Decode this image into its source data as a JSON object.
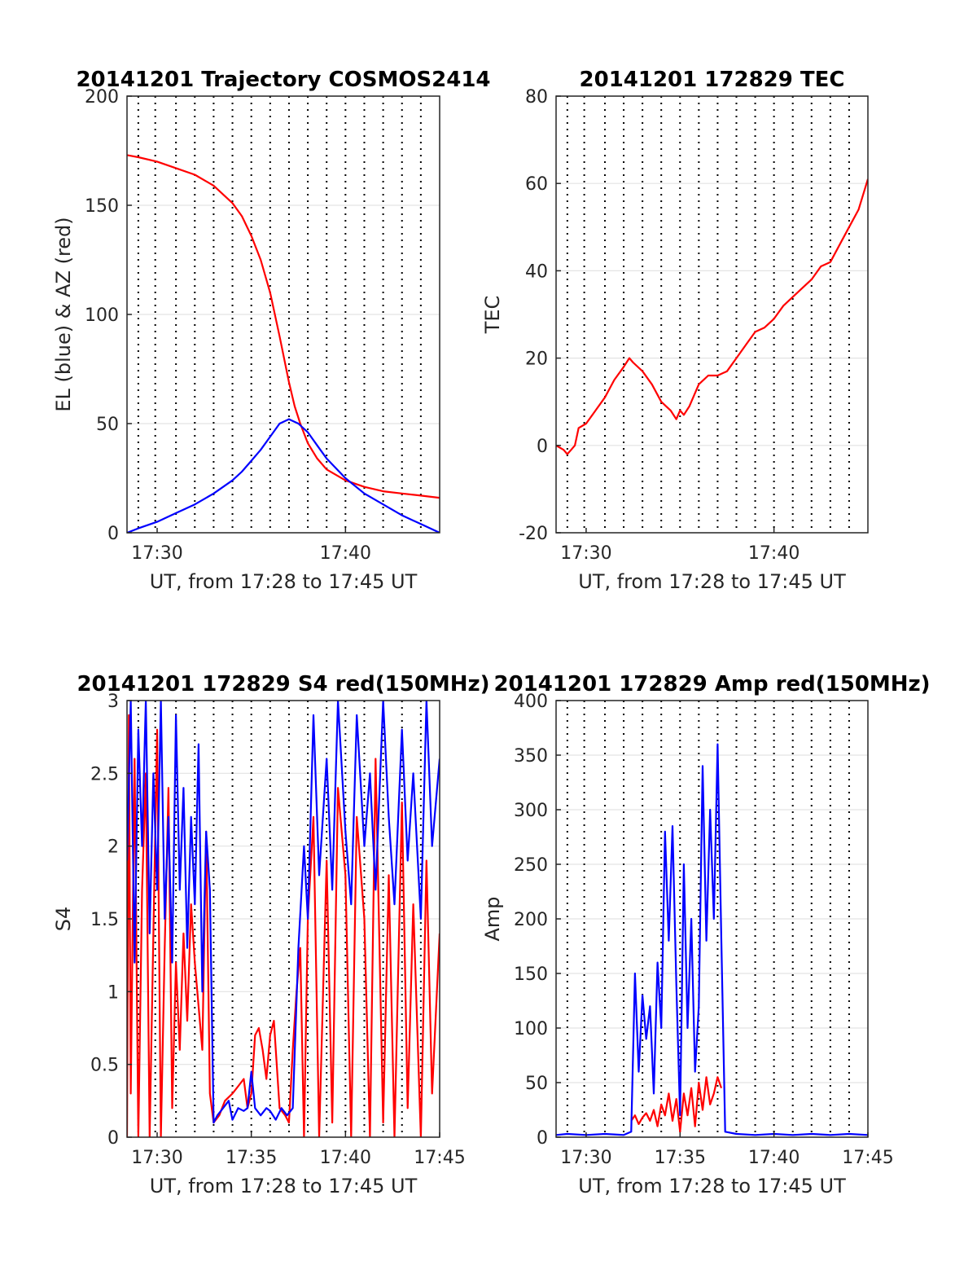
{
  "chart_data": [
    {
      "id": "trajectory",
      "type": "line",
      "title": "20141201 Trajectory COSMOS2414",
      "xlabel": "UT, from 17:28 to 17:45 UT",
      "ylabel": "EL (blue) & AZ (red)",
      "xlim": [
        28.4,
        45.0
      ],
      "ylim": [
        0,
        200
      ],
      "x_ticks": [
        {
          "v": 30,
          "label": "17:30"
        },
        {
          "v": 40,
          "label": "17:40"
        }
      ],
      "y_ticks": [
        {
          "v": 0,
          "label": "0"
        },
        {
          "v": 50,
          "label": "50"
        },
        {
          "v": 100,
          "label": "100"
        },
        {
          "v": 150,
          "label": "150"
        },
        {
          "v": 200,
          "label": "200"
        }
      ],
      "grid": true,
      "series": [
        {
          "color": "#ff0000",
          "x": [
            28.4,
            29,
            30,
            31,
            32,
            33,
            34,
            34.5,
            35,
            35.5,
            36,
            36.5,
            37,
            37.3,
            37.6,
            38,
            38.5,
            39,
            40,
            41,
            42,
            43,
            44,
            45
          ],
          "y": [
            173,
            172,
            170,
            167,
            164,
            159,
            151,
            145,
            136,
            125,
            110,
            90,
            69,
            58,
            50,
            41,
            34,
            29,
            24,
            21,
            19,
            18,
            17,
            16
          ]
        },
        {
          "color": "#0000ff",
          "x": [
            28.4,
            29,
            30,
            31,
            32,
            33,
            34,
            34.5,
            35,
            35.5,
            36,
            36.5,
            37,
            37.5,
            38,
            38.5,
            39,
            40,
            41,
            42,
            43,
            44,
            45
          ],
          "y": [
            0,
            2,
            5,
            9,
            13,
            18,
            24,
            28,
            33,
            38,
            44,
            50,
            52,
            50,
            46,
            40,
            34,
            25,
            18,
            13,
            8,
            4,
            0
          ]
        }
      ]
    },
    {
      "id": "tec",
      "type": "line",
      "title": "20141201 172829 TEC",
      "xlabel": "UT, from 17:28 to 17:45 UT",
      "ylabel": "TEC",
      "xlim": [
        28.4,
        45.0
      ],
      "ylim": [
        -20,
        80
      ],
      "x_ticks": [
        {
          "v": 30,
          "label": "17:30"
        },
        {
          "v": 40,
          "label": "17:40"
        }
      ],
      "y_ticks": [
        {
          "v": -20,
          "label": "-20"
        },
        {
          "v": 0,
          "label": "0"
        },
        {
          "v": 20,
          "label": "20"
        },
        {
          "v": 40,
          "label": "40"
        },
        {
          "v": 60,
          "label": "60"
        },
        {
          "v": 80,
          "label": "80"
        }
      ],
      "grid": true,
      "series": [
        {
          "color": "#ff0000",
          "x": [
            28.4,
            28.8,
            29,
            29.2,
            29.4,
            29.6,
            30,
            30.5,
            31,
            31.5,
            32,
            32.3,
            32.5,
            33,
            33.5,
            34,
            34.5,
            34.8,
            35,
            35.2,
            35.5,
            36,
            36.5,
            37,
            37.5,
            38,
            38.5,
            39,
            39.5,
            40,
            40.5,
            41,
            41.5,
            42,
            42.5,
            43,
            43.5,
            44,
            44.5,
            45
          ],
          "y": [
            0,
            -1,
            -2,
            -1,
            0,
            4,
            5,
            8,
            11,
            15,
            18,
            20,
            19,
            17,
            14,
            10,
            8,
            6,
            8,
            7,
            9,
            14,
            16,
            16,
            17,
            20,
            23,
            26,
            27,
            29,
            32,
            34,
            36,
            38,
            41,
            42,
            46,
            50,
            54,
            61
          ]
        }
      ]
    },
    {
      "id": "s4",
      "type": "line",
      "title": "20141201 172829 S4 red(150MHz)",
      "xlabel": "UT, from 17:28 to 17:45 UT",
      "ylabel": "S4",
      "xlim": [
        28.4,
        45.0
      ],
      "ylim": [
        0,
        3
      ],
      "x_ticks": [
        {
          "v": 30,
          "label": "17:30"
        },
        {
          "v": 35,
          "label": "17:35"
        },
        {
          "v": 40,
          "label": "17:40"
        },
        {
          "v": 45,
          "label": "17:45"
        }
      ],
      "y_ticks": [
        {
          "v": 0,
          "label": "0"
        },
        {
          "v": 0.5,
          "label": "0.5"
        },
        {
          "v": 1,
          "label": "1"
        },
        {
          "v": 1.5,
          "label": "1.5"
        },
        {
          "v": 2,
          "label": "2"
        },
        {
          "v": 2.5,
          "label": "2.5"
        },
        {
          "v": 3,
          "label": "3"
        }
      ],
      "grid": true,
      "series": [
        {
          "color": "#ff0000",
          "x": [
            28.4,
            28.5,
            28.6,
            28.8,
            29,
            29.2,
            29.4,
            29.6,
            29.8,
            30,
            30.2,
            30.4,
            30.6,
            30.8,
            31,
            31.2,
            31.4,
            31.6,
            31.8,
            32,
            32.2,
            32.4,
            32.6,
            32.8,
            33,
            33.3,
            33.6,
            34,
            34.3,
            34.6,
            34.8,
            35,
            35.2,
            35.4,
            35.6,
            35.8,
            36,
            36.2,
            36.5,
            36.8,
            37,
            37.2,
            37.4,
            37.6,
            37.8,
            38,
            38.3,
            38.6,
            39,
            39.3,
            39.6,
            40,
            40.3,
            40.6,
            41,
            41.3,
            41.6,
            42,
            42.3,
            42.6,
            43,
            43.3,
            43.6,
            44,
            44.3,
            44.6,
            45
          ],
          "y": [
            0,
            2.9,
            0.3,
            2.6,
            0,
            1.7,
            2.5,
            0,
            1.4,
            2.8,
            0,
            1.3,
            2.4,
            0.2,
            1.2,
            0.6,
            1.4,
            0.8,
            1.6,
            1.2,
            0.9,
            0.6,
            2.1,
            0.3,
            0.1,
            0.15,
            0.25,
            0.3,
            0.35,
            0.4,
            0.2,
            0.3,
            0.7,
            0.75,
            0.6,
            0.4,
            0.7,
            0.8,
            0.2,
            0.15,
            0.1,
            0.6,
            1.0,
            1.3,
            0,
            1.5,
            2.2,
            0,
            1.9,
            0.1,
            2.4,
            1.8,
            0,
            2.2,
            1.5,
            0,
            2.6,
            0.1,
            1.8,
            0,
            2.3,
            0.2,
            1.6,
            0,
            1.9,
            0.3,
            1.4
          ]
        },
        {
          "color": "#0000ff",
          "x": [
            28.4,
            28.6,
            28.8,
            29,
            29.2,
            29.4,
            29.6,
            29.8,
            30,
            30.2,
            30.4,
            30.6,
            30.8,
            31,
            31.2,
            31.4,
            31.6,
            31.8,
            32,
            32.2,
            32.4,
            32.6,
            32.8,
            33,
            33.2,
            33.5,
            33.8,
            34,
            34.3,
            34.6,
            34.8,
            35,
            35.2,
            35.5,
            35.8,
            36,
            36.3,
            36.6,
            36.9,
            37.2,
            37.5,
            37.8,
            38,
            38.3,
            38.6,
            39,
            39.3,
            39.6,
            40,
            40.3,
            40.6,
            41,
            41.3,
            41.6,
            42,
            42.3,
            42.6,
            43,
            43.3,
            43.6,
            44,
            44.3,
            44.6,
            45
          ],
          "y": [
            1.9,
            3.0,
            1.2,
            2.8,
            2.0,
            3.0,
            1.4,
            2.5,
            1.7,
            3.0,
            1.5,
            2.2,
            1.2,
            2.9,
            1.7,
            2.4,
            1.3,
            2.2,
            1.6,
            2.7,
            1.0,
            2.1,
            1.7,
            0.1,
            0.15,
            0.2,
            0.25,
            0.12,
            0.2,
            0.18,
            0.2,
            0.45,
            0.2,
            0.15,
            0.2,
            0.18,
            0.12,
            0.2,
            0.15,
            0.2,
            1.3,
            2.0,
            1.5,
            2.9,
            1.8,
            2.6,
            1.7,
            3.0,
            2.1,
            1.6,
            2.9,
            2.0,
            2.5,
            1.7,
            3.0,
            2.2,
            1.6,
            2.8,
            1.9,
            2.5,
            1.5,
            3.0,
            2.0,
            2.6
          ]
        }
      ]
    },
    {
      "id": "amp",
      "type": "line",
      "title": "20141201 172829 Amp red(150MHz)",
      "xlabel": "UT, from 17:28 to 17:45 UT",
      "ylabel": "Amp",
      "xlim": [
        28.4,
        45.0
      ],
      "ylim": [
        0,
        400
      ],
      "x_ticks": [
        {
          "v": 30,
          "label": "17:30"
        },
        {
          "v": 35,
          "label": "17:35"
        },
        {
          "v": 40,
          "label": "17:40"
        },
        {
          "v": 45,
          "label": "17:45"
        }
      ],
      "y_ticks": [
        {
          "v": 0,
          "label": "0"
        },
        {
          "v": 50,
          "label": "50"
        },
        {
          "v": 100,
          "label": "100"
        },
        {
          "v": 150,
          "label": "150"
        },
        {
          "v": 200,
          "label": "200"
        },
        {
          "v": 250,
          "label": "250"
        },
        {
          "v": 300,
          "label": "300"
        },
        {
          "v": 350,
          "label": "350"
        },
        {
          "v": 400,
          "label": "400"
        }
      ],
      "grid": true,
      "series": [
        {
          "color": "#ff0000",
          "x": [
            32.4,
            32.6,
            32.8,
            33,
            33.2,
            33.4,
            33.6,
            33.8,
            34,
            34.2,
            34.4,
            34.6,
            34.8,
            35,
            35.2,
            35.4,
            35.6,
            35.8,
            36,
            36.2,
            36.4,
            36.6,
            36.8,
            37,
            37.2
          ],
          "y": [
            15,
            20,
            12,
            18,
            22,
            15,
            25,
            10,
            30,
            20,
            40,
            15,
            35,
            5,
            40,
            20,
            45,
            10,
            50,
            25,
            55,
            30,
            40,
            55,
            45
          ]
        },
        {
          "color": "#0000ff",
          "x": [
            28.4,
            29,
            30,
            31,
            32,
            32.4,
            32.6,
            32.8,
            33,
            33.2,
            33.4,
            33.6,
            33.8,
            34,
            34.2,
            34.4,
            34.6,
            34.8,
            35,
            35.2,
            35.4,
            35.6,
            35.8,
            36,
            36.2,
            36.4,
            36.6,
            36.8,
            37,
            37.2,
            37.4,
            38,
            39,
            40,
            41,
            42,
            43,
            44,
            45
          ],
          "y": [
            2,
            3,
            2,
            3,
            2,
            5,
            150,
            60,
            130,
            90,
            120,
            40,
            160,
            100,
            280,
            180,
            285,
            140,
            20,
            250,
            100,
            200,
            60,
            120,
            340,
            180,
            300,
            200,
            360,
            180,
            5,
            3,
            2,
            3,
            2,
            3,
            2,
            3,
            2
          ]
        }
      ]
    }
  ]
}
